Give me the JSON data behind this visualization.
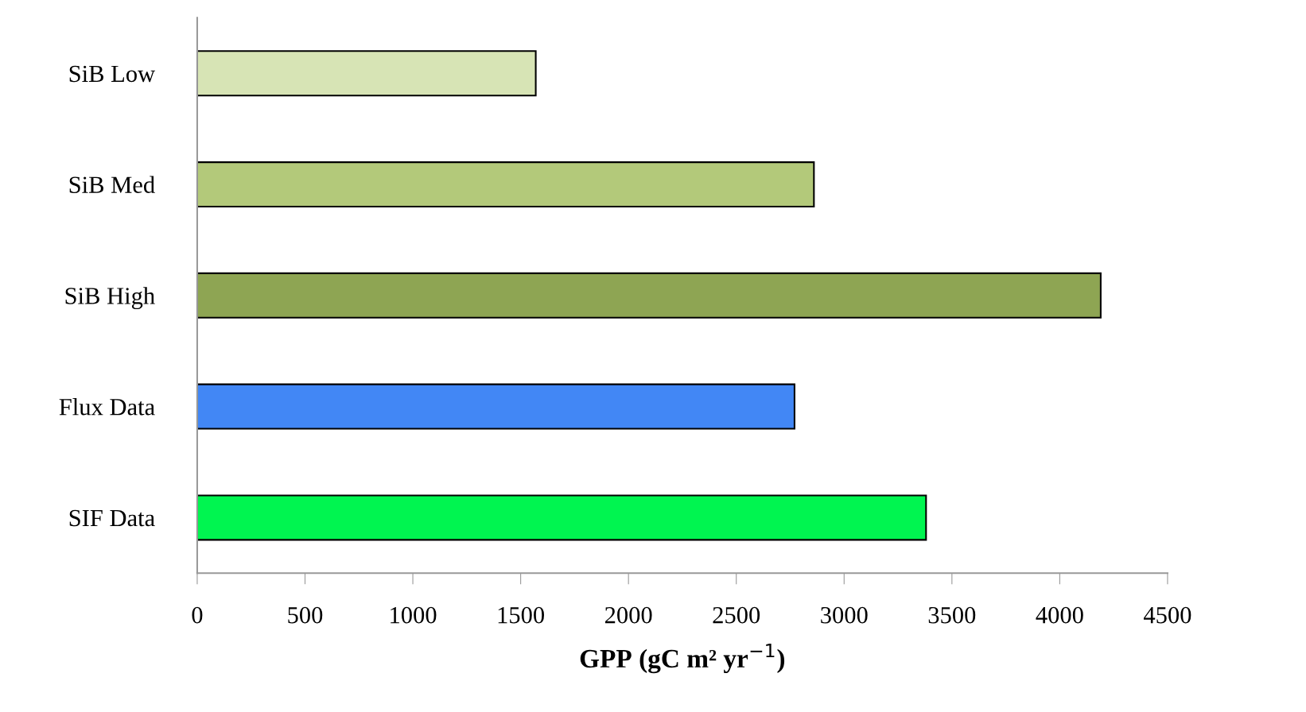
{
  "chart_data": {
    "type": "bar",
    "orientation": "horizontal",
    "xlabel": "GPP (gC m² yr$^{−1}$)",
    "categories": [
      "SiB Low",
      "SiB Med",
      "SiB High",
      "Flux Data",
      "SIF Data"
    ],
    "values": [
      1570,
      2860,
      4190,
      2770,
      3380
    ],
    "colors": [
      "#d7e4b5",
      "#b3c97a",
      "#8ea553",
      "#4287f5",
      "#00f550"
    ],
    "xlim": [
      0,
      4500
    ],
    "xticks": [
      0,
      500,
      1000,
      1500,
      2000,
      2500,
      3000,
      3500,
      4000,
      4500
    ],
    "grid": false
  }
}
